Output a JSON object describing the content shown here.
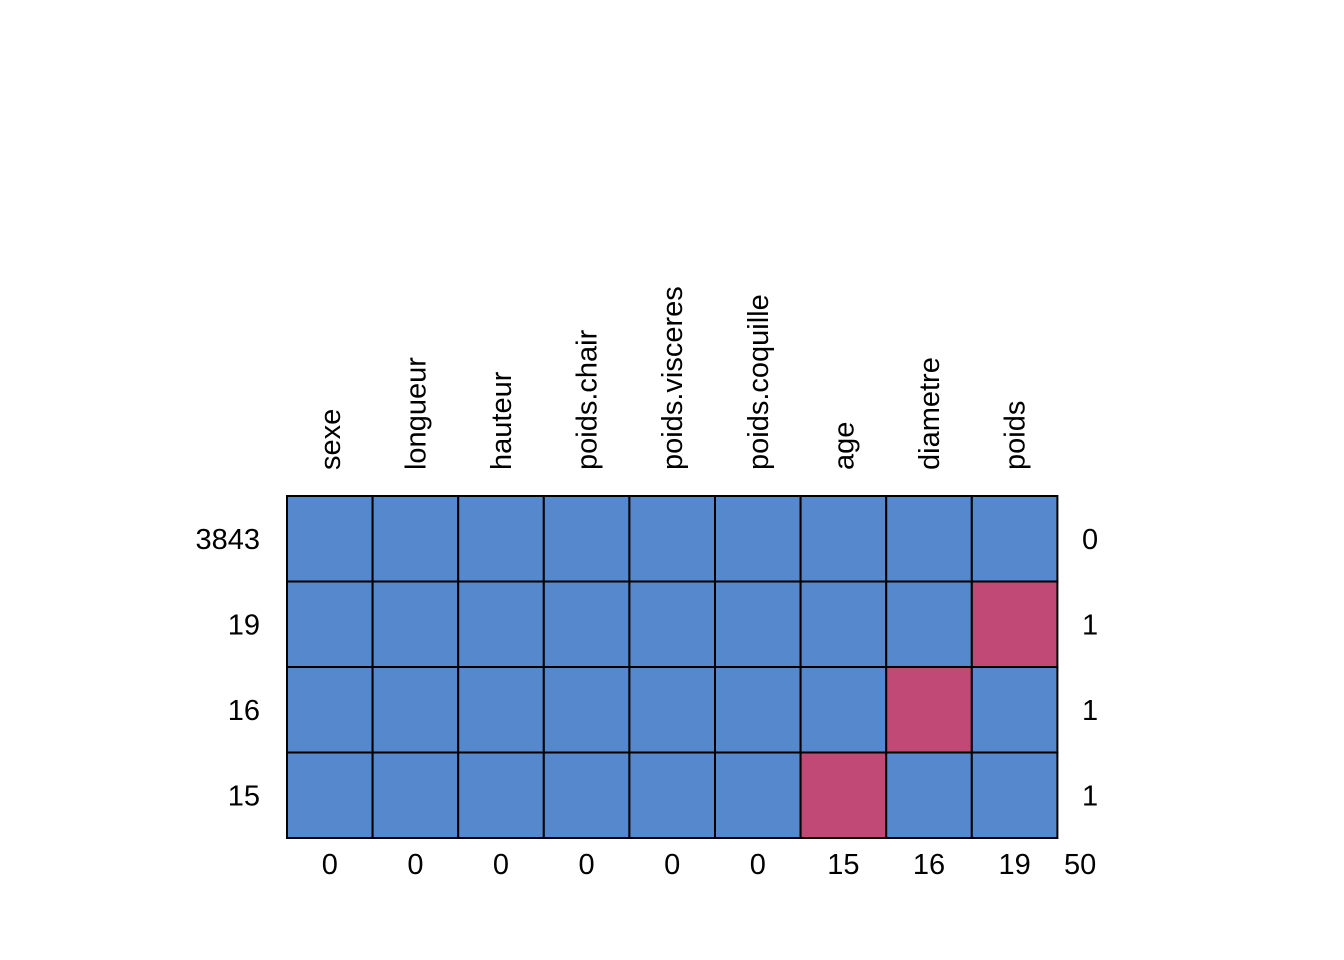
{
  "chart_data": {
    "type": "heatmap",
    "title": "",
    "columns": [
      "sexe",
      "longueur",
      "hauteur",
      "poids.chair",
      "poids.visceres",
      "poids.coquille",
      "age",
      "diametre",
      "poids"
    ],
    "row_counts": [
      "3843",
      "19",
      "16",
      "15"
    ],
    "row_missing_counts": [
      "0",
      "1",
      "1",
      "1"
    ],
    "column_missing_counts": [
      "0",
      "0",
      "0",
      "0",
      "0",
      "0",
      "15",
      "16",
      "19"
    ],
    "total_missing": "50",
    "pattern": [
      [
        1,
        1,
        1,
        1,
        1,
        1,
        1,
        1,
        1
      ],
      [
        1,
        1,
        1,
        1,
        1,
        1,
        1,
        1,
        0
      ],
      [
        1,
        1,
        1,
        1,
        1,
        1,
        1,
        0,
        1
      ],
      [
        1,
        1,
        1,
        1,
        1,
        1,
        0,
        1,
        1
      ]
    ],
    "colors": {
      "observed": "#5588cc",
      "missing": "#c04a75"
    }
  }
}
